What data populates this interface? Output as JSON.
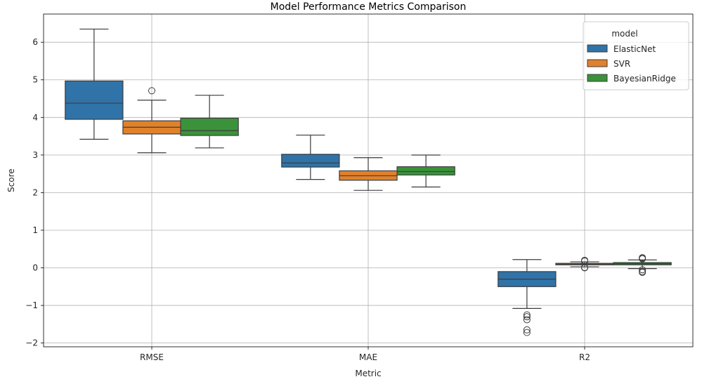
{
  "chart_data": {
    "type": "box",
    "title": "Model Performance Metrics Comparison",
    "xlabel": "Metric",
    "ylabel": "Score",
    "categories": [
      "RMSE",
      "MAE",
      "R2"
    ],
    "ylim": [
      -2.1,
      6.75
    ],
    "yticks": [
      -2,
      -1,
      0,
      1,
      2,
      3,
      4,
      5,
      6
    ],
    "ytick_labels": [
      "−2",
      "−1",
      "0",
      "1",
      "2",
      "3",
      "4",
      "5",
      "6"
    ],
    "grid": true,
    "legend": {
      "title": "model",
      "position": "top-right"
    },
    "series": [
      {
        "name": "ElasticNet",
        "color": "#2f73a8",
        "boxes": [
          {
            "whisker_low": 3.42,
            "q1": 3.95,
            "median": 4.38,
            "q3": 4.97,
            "whisker_high": 6.35,
            "outliers": []
          },
          {
            "whisker_low": 2.35,
            "q1": 2.68,
            "median": 2.79,
            "q3": 3.02,
            "whisker_high": 3.53,
            "outliers": []
          },
          {
            "whisker_low": -1.08,
            "q1": -0.5,
            "median": -0.3,
            "q3": -0.1,
            "whisker_high": 0.22,
            "outliers": [
              -1.25,
              -1.3,
              -1.38,
              -1.65,
              -1.72
            ]
          }
        ]
      },
      {
        "name": "SVR",
        "color": "#e1812c",
        "boxes": [
          {
            "whisker_low": 3.06,
            "q1": 3.56,
            "median": 3.74,
            "q3": 3.91,
            "whisker_high": 4.46,
            "outliers": [
              4.71
            ]
          },
          {
            "whisker_low": 2.06,
            "q1": 2.33,
            "median": 2.45,
            "q3": 2.58,
            "whisker_high": 2.93,
            "outliers": []
          },
          {
            "whisker_low": 0.03,
            "q1": 0.08,
            "median": 0.1,
            "q3": 0.12,
            "whisker_high": 0.16,
            "outliers": [
              0.2,
              0.18,
              0.0,
              0.01
            ]
          }
        ]
      },
      {
        "name": "BayesianRidge",
        "color": "#3a923a",
        "boxes": [
          {
            "whisker_low": 3.19,
            "q1": 3.52,
            "median": 3.65,
            "q3": 3.98,
            "whisker_high": 4.59,
            "outliers": []
          },
          {
            "whisker_low": 2.15,
            "q1": 2.47,
            "median": 2.56,
            "q3": 2.69,
            "whisker_high": 3.0,
            "outliers": []
          },
          {
            "whisker_low": -0.02,
            "q1": 0.08,
            "median": 0.11,
            "q3": 0.14,
            "whisker_high": 0.21,
            "outliers": [
              0.26,
              0.24,
              0.27,
              -0.05,
              -0.1,
              -0.12
            ]
          }
        ]
      }
    ]
  }
}
